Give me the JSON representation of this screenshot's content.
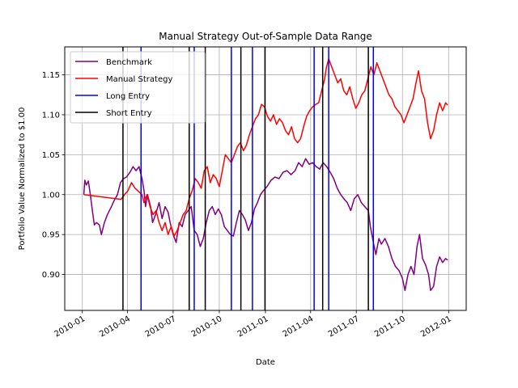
{
  "chart_data": {
    "type": "line",
    "title": "Manual Strategy Out-of-Sample Data Range",
    "xlabel": "Date",
    "ylabel": "Portfolio Value Normalized to $1.00",
    "x_ticks": [
      "2010-01",
      "2010-04",
      "2010-07",
      "2010-10",
      "2011-01",
      "2011-04",
      "2011-07",
      "2011-10",
      "2012-01"
    ],
    "y_ticks": [
      "0.90",
      "0.95",
      "1.00",
      "1.05",
      "1.10",
      "1.15"
    ],
    "xlim": [
      "2009-11-27",
      "2012-02-05"
    ],
    "ylim": [
      0.855,
      1.185
    ],
    "grid": true,
    "legend_position": "top-left",
    "series": [
      {
        "name": "Benchmark",
        "color": "#800080",
        "points": [
          [
            "2010-01-04",
            1.0
          ],
          [
            "2010-01-06",
            1.018
          ],
          [
            "2010-01-09",
            1.012
          ],
          [
            "2010-01-13",
            1.017
          ],
          [
            "2010-01-17",
            1.0
          ],
          [
            "2010-01-21",
            0.98
          ],
          [
            "2010-01-25",
            0.962
          ],
          [
            "2010-01-29",
            0.965
          ],
          [
            "2010-02-04",
            0.962
          ],
          [
            "2010-02-08",
            0.95
          ],
          [
            "2010-02-14",
            0.965
          ],
          [
            "2010-02-20",
            0.975
          ],
          [
            "2010-02-28",
            0.985
          ],
          [
            "2010-03-05",
            0.992
          ],
          [
            "2010-03-12",
            1.0
          ],
          [
            "2010-03-18",
            1.015
          ],
          [
            "2010-03-24",
            1.02
          ],
          [
            "2010-03-30",
            1.022
          ],
          [
            "2010-04-06",
            1.028
          ],
          [
            "2010-04-12",
            1.035
          ],
          [
            "2010-04-18",
            1.03
          ],
          [
            "2010-04-24",
            1.035
          ],
          [
            "2010-04-30",
            1.02
          ],
          [
            "2010-05-04",
            1.005
          ],
          [
            "2010-05-07",
            0.985
          ],
          [
            "2010-05-11",
            1.0
          ],
          [
            "2010-05-17",
            0.985
          ],
          [
            "2010-05-21",
            0.965
          ],
          [
            "2010-05-27",
            0.975
          ],
          [
            "2010-06-03",
            0.99
          ],
          [
            "2010-06-09",
            0.97
          ],
          [
            "2010-06-15",
            0.985
          ],
          [
            "2010-06-21",
            0.978
          ],
          [
            "2010-06-25",
            0.965
          ],
          [
            "2010-07-01",
            0.95
          ],
          [
            "2010-07-07",
            0.94
          ],
          [
            "2010-07-13",
            0.965
          ],
          [
            "2010-07-19",
            0.96
          ],
          [
            "2010-07-25",
            0.975
          ],
          [
            "2010-07-31",
            0.98
          ],
          [
            "2010-08-06",
            0.985
          ],
          [
            "2010-08-12",
            0.955
          ],
          [
            "2010-08-18",
            0.95
          ],
          [
            "2010-08-24",
            0.935
          ],
          [
            "2010-08-30",
            0.945
          ],
          [
            "2010-09-05",
            0.965
          ],
          [
            "2010-09-11",
            0.98
          ],
          [
            "2010-09-17",
            0.985
          ],
          [
            "2010-09-23",
            0.975
          ],
          [
            "2010-09-29",
            0.982
          ],
          [
            "2010-10-05",
            0.975
          ],
          [
            "2010-10-11",
            0.96
          ],
          [
            "2010-10-17",
            0.955
          ],
          [
            "2010-10-23",
            0.95
          ],
          [
            "2010-10-29",
            0.948
          ],
          [
            "2010-11-04",
            0.965
          ],
          [
            "2010-11-10",
            0.98
          ],
          [
            "2010-11-16",
            0.975
          ],
          [
            "2010-11-22",
            0.968
          ],
          [
            "2010-11-28",
            0.955
          ],
          [
            "2010-12-04",
            0.965
          ],
          [
            "2010-12-10",
            0.982
          ],
          [
            "2010-12-16",
            0.99
          ],
          [
            "2010-12-22",
            1.0
          ],
          [
            "2010-12-28",
            1.005
          ],
          [
            "2011-01-04",
            1.01
          ],
          [
            "2011-01-12",
            1.018
          ],
          [
            "2011-01-20",
            1.022
          ],
          [
            "2011-01-28",
            1.02
          ],
          [
            "2011-02-05",
            1.028
          ],
          [
            "2011-02-13",
            1.03
          ],
          [
            "2011-02-21",
            1.025
          ],
          [
            "2011-03-01",
            1.03
          ],
          [
            "2011-03-08",
            1.04
          ],
          [
            "2011-03-15",
            1.035
          ],
          [
            "2011-03-22",
            1.045
          ],
          [
            "2011-03-29",
            1.038
          ],
          [
            "2011-04-05",
            1.04
          ],
          [
            "2011-04-12",
            1.035
          ],
          [
            "2011-04-19",
            1.032
          ],
          [
            "2011-04-26",
            1.04
          ],
          [
            "2011-05-03",
            1.035
          ],
          [
            "2011-05-10",
            1.028
          ],
          [
            "2011-05-17",
            1.02
          ],
          [
            "2011-05-24",
            1.008
          ],
          [
            "2011-05-31",
            1.0
          ],
          [
            "2011-06-06",
            0.995
          ],
          [
            "2011-06-13",
            0.99
          ],
          [
            "2011-06-20",
            0.98
          ],
          [
            "2011-06-27",
            0.995
          ],
          [
            "2011-07-04",
            1.0
          ],
          [
            "2011-07-11",
            0.99
          ],
          [
            "2011-07-18",
            0.985
          ],
          [
            "2011-07-25",
            0.98
          ],
          [
            "2011-07-29",
            0.96
          ],
          [
            "2011-08-04",
            0.94
          ],
          [
            "2011-08-09",
            0.925
          ],
          [
            "2011-08-15",
            0.945
          ],
          [
            "2011-08-20",
            0.938
          ],
          [
            "2011-08-27",
            0.945
          ],
          [
            "2011-09-03",
            0.935
          ],
          [
            "2011-09-10",
            0.92
          ],
          [
            "2011-09-17",
            0.91
          ],
          [
            "2011-09-24",
            0.905
          ],
          [
            "2011-10-01",
            0.895
          ],
          [
            "2011-10-06",
            0.88
          ],
          [
            "2011-10-12",
            0.9
          ],
          [
            "2011-10-18",
            0.91
          ],
          [
            "2011-10-24",
            0.9
          ],
          [
            "2011-10-30",
            0.935
          ],
          [
            "2011-11-04",
            0.95
          ],
          [
            "2011-11-10",
            0.92
          ],
          [
            "2011-11-16",
            0.912
          ],
          [
            "2011-11-22",
            0.9
          ],
          [
            "2011-11-26",
            0.88
          ],
          [
            "2011-12-02",
            0.885
          ],
          [
            "2011-12-08",
            0.91
          ],
          [
            "2011-12-14",
            0.922
          ],
          [
            "2011-12-20",
            0.915
          ],
          [
            "2011-12-26",
            0.92
          ],
          [
            "2011-12-30",
            0.918
          ]
        ]
      },
      {
        "name": "Manual Strategy",
        "color": "#ff0000",
        "points": [
          [
            "2010-01-04",
            1.0
          ],
          [
            "2010-03-19",
            0.994
          ],
          [
            "2010-03-26",
            1.0
          ],
          [
            "2010-04-02",
            1.005
          ],
          [
            "2010-04-09",
            1.015
          ],
          [
            "2010-04-16",
            1.008
          ],
          [
            "2010-04-23",
            1.004
          ],
          [
            "2010-04-30",
            1.0
          ],
          [
            "2010-05-04",
            0.99
          ],
          [
            "2010-05-10",
            1.0
          ],
          [
            "2010-05-16",
            0.985
          ],
          [
            "2010-05-22",
            0.975
          ],
          [
            "2010-05-28",
            0.98
          ],
          [
            "2010-06-03",
            0.965
          ],
          [
            "2010-06-09",
            0.955
          ],
          [
            "2010-06-15",
            0.965
          ],
          [
            "2010-06-21",
            0.95
          ],
          [
            "2010-06-27",
            0.96
          ],
          [
            "2010-07-03",
            0.948
          ],
          [
            "2010-07-09",
            0.955
          ],
          [
            "2010-07-15",
            0.965
          ],
          [
            "2010-07-21",
            0.975
          ],
          [
            "2010-07-27",
            0.98
          ],
          [
            "2010-08-02",
            0.995
          ],
          [
            "2010-08-08",
            1.005
          ],
          [
            "2010-08-14",
            1.02
          ],
          [
            "2010-08-20",
            1.015
          ],
          [
            "2010-08-26",
            1.008
          ],
          [
            "2010-09-01",
            1.03
          ],
          [
            "2010-09-07",
            1.035
          ],
          [
            "2010-09-13",
            1.015
          ],
          [
            "2010-09-19",
            1.025
          ],
          [
            "2010-09-25",
            1.02
          ],
          [
            "2010-10-01",
            1.01
          ],
          [
            "2010-10-07",
            1.03
          ],
          [
            "2010-10-13",
            1.05
          ],
          [
            "2010-10-19",
            1.045
          ],
          [
            "2010-10-25",
            1.04
          ],
          [
            "2010-10-31",
            1.05
          ],
          [
            "2010-11-06",
            1.06
          ],
          [
            "2010-11-12",
            1.065
          ],
          [
            "2010-11-18",
            1.055
          ],
          [
            "2010-11-24",
            1.062
          ],
          [
            "2010-11-30",
            1.075
          ],
          [
            "2010-12-06",
            1.085
          ],
          [
            "2010-12-12",
            1.095
          ],
          [
            "2010-12-18",
            1.1
          ],
          [
            "2010-12-24",
            1.113
          ],
          [
            "2010-12-30",
            1.11
          ],
          [
            "2011-01-05",
            1.098
          ],
          [
            "2011-01-11",
            1.092
          ],
          [
            "2011-01-17",
            1.1
          ],
          [
            "2011-01-23",
            1.088
          ],
          [
            "2011-01-29",
            1.095
          ],
          [
            "2011-02-04",
            1.09
          ],
          [
            "2011-02-10",
            1.08
          ],
          [
            "2011-02-16",
            1.075
          ],
          [
            "2011-02-22",
            1.085
          ],
          [
            "2011-02-28",
            1.07
          ],
          [
            "2011-03-06",
            1.065
          ],
          [
            "2011-03-12",
            1.07
          ],
          [
            "2011-03-18",
            1.085
          ],
          [
            "2011-03-24",
            1.098
          ],
          [
            "2011-03-30",
            1.105
          ],
          [
            "2011-04-05",
            1.11
          ],
          [
            "2011-04-11",
            1.113
          ],
          [
            "2011-04-17",
            1.115
          ],
          [
            "2011-04-23",
            1.13
          ],
          [
            "2011-04-29",
            1.145
          ],
          [
            "2011-05-02",
            1.158
          ],
          [
            "2011-05-07",
            1.17
          ],
          [
            "2011-05-13",
            1.16
          ],
          [
            "2011-05-19",
            1.15
          ],
          [
            "2011-05-25",
            1.14
          ],
          [
            "2011-05-31",
            1.145
          ],
          [
            "2011-06-06",
            1.13
          ],
          [
            "2011-06-12",
            1.125
          ],
          [
            "2011-06-18",
            1.135
          ],
          [
            "2011-06-24",
            1.12
          ],
          [
            "2011-06-30",
            1.108
          ],
          [
            "2011-07-06",
            1.115
          ],
          [
            "2011-07-12",
            1.125
          ],
          [
            "2011-07-18",
            1.13
          ],
          [
            "2011-07-24",
            1.145
          ],
          [
            "2011-07-30",
            1.16
          ],
          [
            "2011-08-05",
            1.15
          ],
          [
            "2011-08-11",
            1.165
          ],
          [
            "2011-08-17",
            1.155
          ],
          [
            "2011-08-23",
            1.145
          ],
          [
            "2011-08-29",
            1.135
          ],
          [
            "2011-09-04",
            1.125
          ],
          [
            "2011-09-10",
            1.12
          ],
          [
            "2011-09-16",
            1.11
          ],
          [
            "2011-09-22",
            1.105
          ],
          [
            "2011-09-28",
            1.1
          ],
          [
            "2011-10-04",
            1.09
          ],
          [
            "2011-10-10",
            1.1
          ],
          [
            "2011-10-16",
            1.11
          ],
          [
            "2011-10-22",
            1.12
          ],
          [
            "2011-10-28",
            1.14
          ],
          [
            "2011-11-02",
            1.155
          ],
          [
            "2011-11-08",
            1.13
          ],
          [
            "2011-11-14",
            1.12
          ],
          [
            "2011-11-20",
            1.09
          ],
          [
            "2011-11-26",
            1.07
          ],
          [
            "2011-12-02",
            1.08
          ],
          [
            "2011-12-08",
            1.1
          ],
          [
            "2011-12-14",
            1.115
          ],
          [
            "2011-12-20",
            1.105
          ],
          [
            "2011-12-26",
            1.115
          ],
          [
            "2011-12-30",
            1.112
          ]
        ]
      },
      {
        "name": "Long Entry",
        "color": "#0000ff",
        "dates": [
          "2010-04-28",
          "2010-08-12",
          "2010-10-25",
          "2010-12-06",
          "2011-04-08",
          "2011-05-07",
          "2011-08-04"
        ]
      },
      {
        "name": "Short Entry",
        "color": "#000000",
        "dates": [
          "2010-03-23",
          "2010-08-02",
          "2010-09-03",
          "2010-11-13",
          "2010-12-31",
          "2011-04-25",
          "2011-07-25"
        ]
      }
    ]
  }
}
